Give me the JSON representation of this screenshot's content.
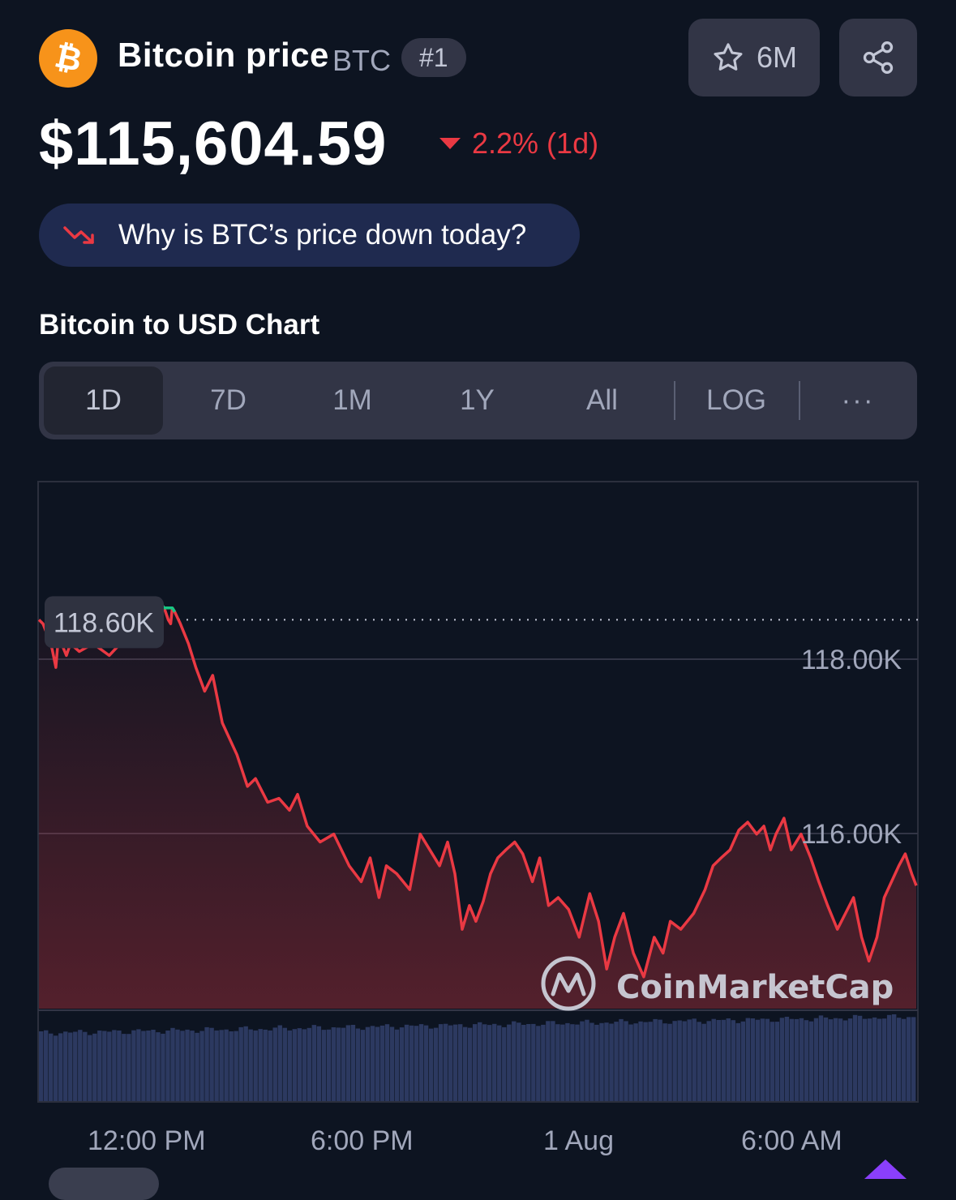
{
  "header": {
    "logo_symbol": "₿",
    "coin_name": "Bitcoin price",
    "symbol": "BTC",
    "rank": "#1",
    "watchlist_count": "6M",
    "star_icon": "star-icon",
    "share_icon": "share-icon"
  },
  "price": {
    "value": "$115,604.59",
    "change": "2.2% (1d)",
    "direction": "down",
    "down_color": "#ea3943"
  },
  "insight": {
    "label": "Why is BTC’s price down today?",
    "icon": "trend-down-icon"
  },
  "chart_section": {
    "title": "Bitcoin to USD Chart",
    "tabs": [
      "1D",
      "7D",
      "1M",
      "1Y",
      "All",
      "LOG",
      "···"
    ],
    "active_tab": "1D"
  },
  "chart_data": {
    "type": "line",
    "y_axis_labels": [
      "118.00K",
      "116.00K"
    ],
    "reference_label": "118.60K",
    "reference_value": 118600,
    "x_labels": [
      "12:00 PM",
      "6:00 PM",
      "1 Aug",
      "6:00 AM"
    ],
    "watermark": "CoinMarketCap",
    "ylim": [
      113700,
      120300
    ],
    "grid": true,
    "line_color": "#ea3943",
    "up_color": "#16c784",
    "x": [
      0,
      0.0046,
      0.0138,
      0.0193,
      0.023,
      0.0276,
      0.0313,
      0.0359,
      0.046,
      0.0617,
      0.0801,
      0.1013,
      0.1151,
      0.129,
      0.1391,
      0.1428,
      0.1474,
      0.1502,
      0.152,
      0.1548,
      0.1612,
      0.1704,
      0.1788,
      0.1889,
      0.1981,
      0.2091,
      0.2257,
      0.2377,
      0.2469,
      0.2607,
      0.2736,
      0.2856,
      0.2948,
      0.3058,
      0.3205,
      0.3361,
      0.3536,
      0.3674,
      0.3775,
      0.3876,
      0.396,
      0.4079,
      0.4226,
      0.4346,
      0.4456,
      0.4567,
      0.4658,
      0.4741,
      0.4824,
      0.4907,
      0.4981,
      0.5064,
      0.5147,
      0.523,
      0.5322,
      0.5423,
      0.5515,
      0.5625,
      0.5708,
      0.5809,
      0.5919,
      0.6038,
      0.6158,
      0.6278,
      0.6379,
      0.6471,
      0.6563,
      0.6664,
      0.6775,
      0.6894,
      0.7013,
      0.7114,
      0.7197,
      0.7316,
      0.7463,
      0.7592,
      0.7684,
      0.7776,
      0.7877,
      0.7978,
      0.8079,
      0.818,
      0.8263,
      0.8337,
      0.8401,
      0.8493,
      0.8576,
      0.8687,
      0.8797,
      0.8889,
      0.899,
      0.9101,
      0.9193,
      0.9285,
      0.9377,
      0.946,
      0.9552,
      0.9635,
      0.9718,
      0.9801,
      0.9874,
      0.9948,
      1
    ],
    "values": [
      118600,
      118550,
      118300,
      118000,
      118500,
      118250,
      118150,
      118300,
      118200,
      118300,
      118150,
      118400,
      118600,
      118550,
      118800,
      118750,
      118600,
      118550,
      118750,
      118700,
      118550,
      118300,
      118000,
      117700,
      117900,
      117300,
      116900,
      116500,
      116600,
      116300,
      116350,
      116200,
      116400,
      116000,
      115800,
      115900,
      115500,
      115300,
      115600,
      115100,
      115500,
      115400,
      115200,
      115900,
      115700,
      115500,
      115800,
      115400,
      114700,
      115000,
      114800,
      115050,
      115400,
      115600,
      115700,
      115800,
      115650,
      115300,
      115600,
      115000,
      115100,
      114950,
      114600,
      115150,
      114800,
      114200,
      114600,
      114900,
      114400,
      114100,
      114600,
      114400,
      114800,
      114700,
      114900,
      115200,
      115500,
      115600,
      115700,
      115950,
      116050,
      115900,
      116000,
      115700,
      115900,
      116100,
      115700,
      115900,
      115600,
      115300,
      115000,
      114700,
      114900,
      115100,
      114600,
      114300,
      114600,
      115100,
      115300,
      115500,
      115650,
      115400,
      115250
    ]
  }
}
